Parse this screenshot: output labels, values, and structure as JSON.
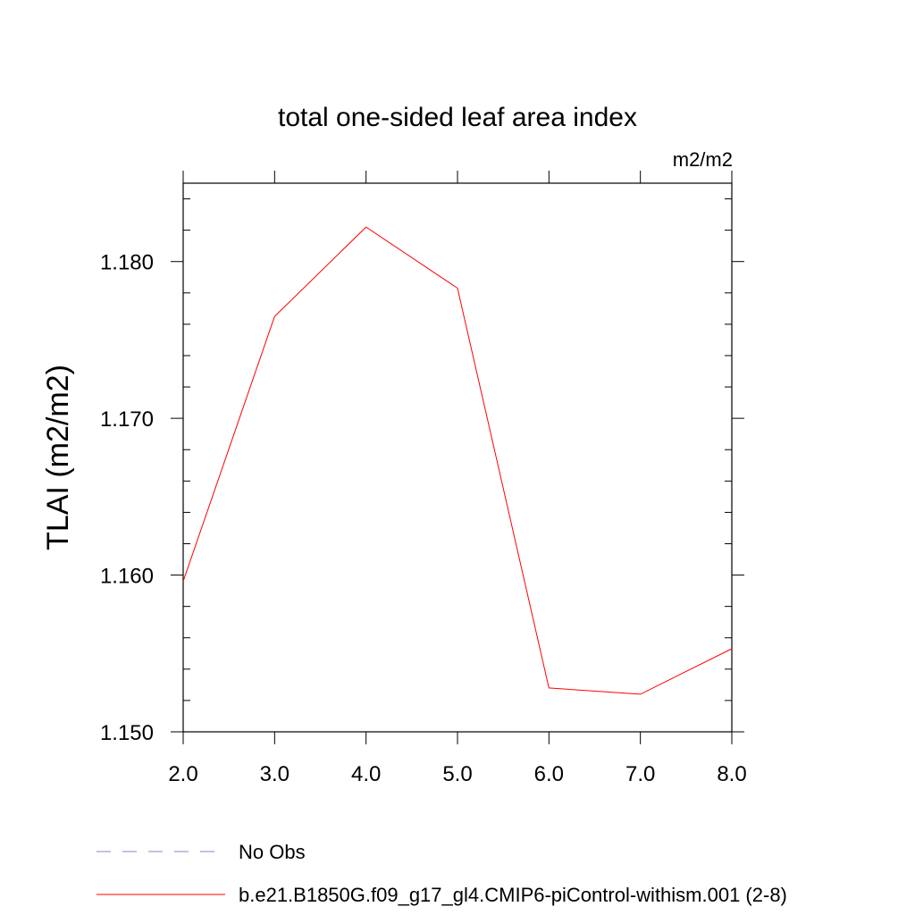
{
  "chart_data": {
    "type": "line",
    "title": "total one-sided leaf area index",
    "units_label": "m2/m2",
    "ylabel": "TLAI  (m2/m2)",
    "xlabel": "",
    "xlim": [
      2.0,
      8.0
    ],
    "ylim": [
      1.15,
      1.185
    ],
    "x_ticks": [
      2.0,
      3.0,
      4.0,
      5.0,
      6.0,
      7.0,
      8.0
    ],
    "x_tick_labels": [
      "2.0",
      "3.0",
      "4.0",
      "5.0",
      "6.0",
      "7.0",
      "8.0"
    ],
    "y_ticks": [
      1.15,
      1.16,
      1.17,
      1.18
    ],
    "y_tick_labels": [
      "1.150",
      "1.160",
      "1.170",
      "1.180"
    ],
    "y_minor_step": 0.002,
    "grid": false,
    "legend_position": "bottom",
    "series": [
      {
        "name": "b.e21.B1850G.f09_g17_gl4.CMIP6-piControl-withism.001 (2-8)",
        "color": "#ff0000",
        "style": "solid",
        "x": [
          2.0,
          3.0,
          4.0,
          5.0,
          6.0,
          7.0,
          8.0
        ],
        "values": [
          1.1596,
          1.1765,
          1.1822,
          1.1783,
          1.1528,
          1.1524,
          1.1553
        ]
      }
    ],
    "legend": [
      {
        "label": "No Obs",
        "color": "#8a7fd0",
        "style": "dashed"
      },
      {
        "label": "b.e21.B1850G.f09_g17_gl4.CMIP6-piControl-withism.001 (2-8)",
        "color": "#ff0000",
        "style": "solid"
      }
    ]
  }
}
